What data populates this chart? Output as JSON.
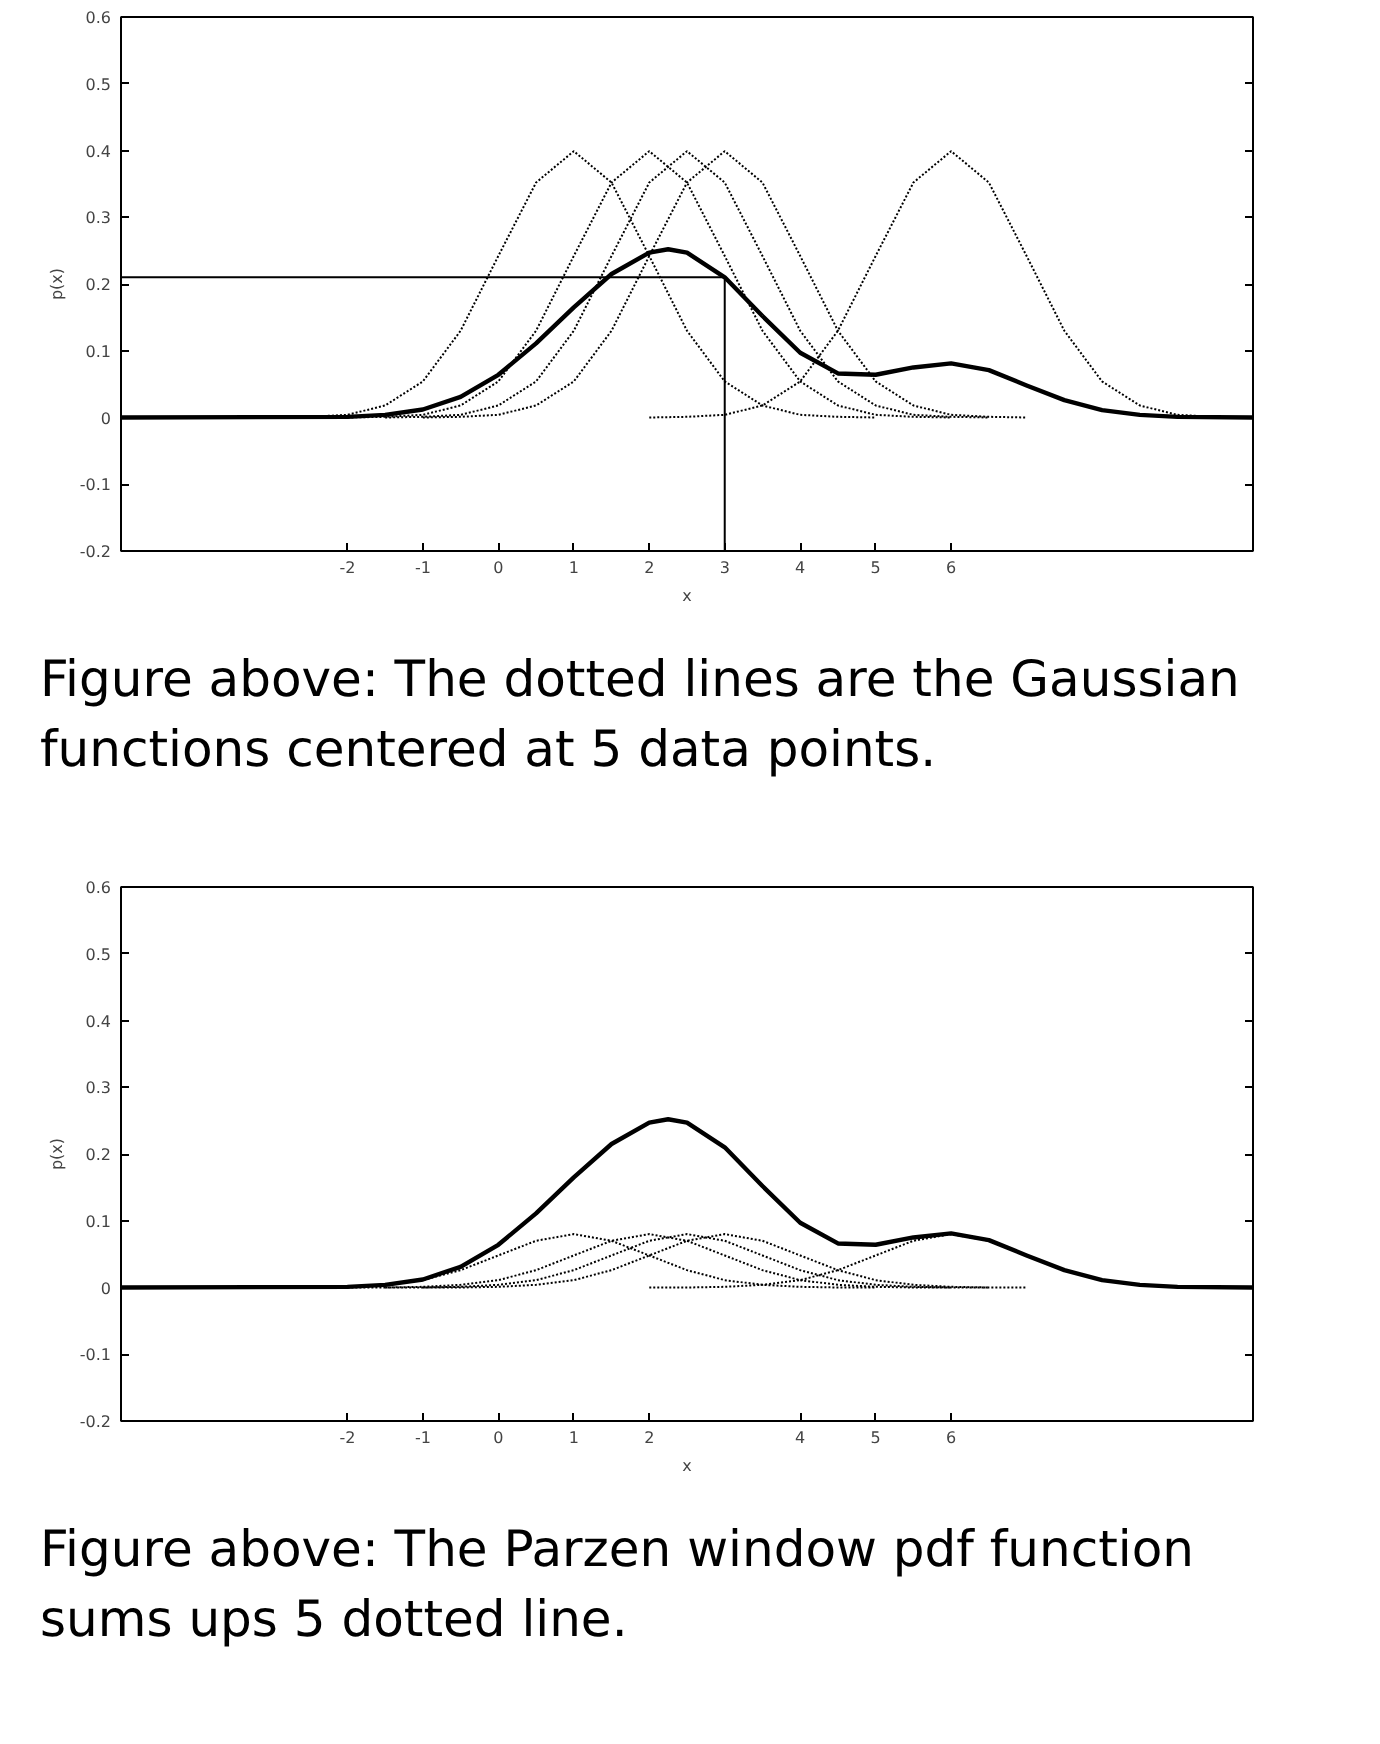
{
  "chart_data": [
    {
      "type": "line",
      "xlabel": "x",
      "ylabel": "p(x)",
      "xlim": [
        -5,
        10
      ],
      "ylim": [
        -0.2,
        0.6
      ],
      "xticks": [
        -2,
        -1,
        0,
        1,
        2,
        3,
        4,
        5,
        6
      ],
      "yticks": [
        -0.2,
        -0.1,
        0,
        0.1,
        0.2,
        0.3,
        0.4,
        0.5,
        0.6
      ],
      "annotations": [
        "Figure above: The dotted lines are the Gaussian functions centered at 5 data points."
      ],
      "series": [
        {
          "color": "#000000",
          "line_style": "solid",
          "x": [
            -5,
            -2,
            -1.5,
            -1,
            -0.5,
            0,
            0.5,
            1,
            1.5,
            2,
            2.25,
            2.5,
            3,
            3.5,
            4,
            4.5,
            5,
            5.5,
            6,
            6.5,
            7,
            7.5,
            8,
            8.5,
            9,
            10
          ],
          "values": [
            0,
            0.001,
            0.004,
            0.012,
            0.031,
            0.064,
            0.111,
            0.165,
            0.215,
            0.247,
            0.252,
            0.247,
            0.21,
            0.152,
            0.097,
            0.066,
            0.064,
            0.075,
            0.081,
            0.071,
            0.048,
            0.026,
            0.011,
            0.004,
            0.001,
            0
          ]
        },
        {
          "color": "#000000",
          "line_style": "dotted",
          "x": [
            -3,
            -2.5,
            -2,
            -1.5,
            -1,
            -0.5,
            0,
            0.5,
            1,
            1.5,
            2,
            2.5,
            3,
            3.5,
            4,
            4.5,
            5
          ],
          "values": [
            0,
            0.001,
            0.004,
            0.018,
            0.054,
            0.13,
            0.242,
            0.352,
            0.399,
            0.352,
            0.242,
            0.13,
            0.054,
            0.018,
            0.004,
            0.001,
            0
          ]
        },
        {
          "color": "#000000",
          "line_style": "dotted",
          "x": [
            -2,
            -1.5,
            -1,
            -0.5,
            0,
            0.5,
            1,
            1.5,
            2,
            2.5,
            3,
            3.5,
            4,
            4.5,
            5,
            5.5,
            6
          ],
          "values": [
            0,
            0.001,
            0.004,
            0.018,
            0.054,
            0.13,
            0.242,
            0.352,
            0.399,
            0.352,
            0.242,
            0.13,
            0.054,
            0.018,
            0.004,
            0.001,
            0
          ]
        },
        {
          "color": "#000000",
          "line_style": "dotted",
          "x": [
            -1.5,
            -1,
            -0.5,
            0,
            0.5,
            1,
            1.5,
            2,
            2.5,
            3,
            3.5,
            4,
            4.5,
            5,
            5.5,
            6,
            6.5
          ],
          "values": [
            0,
            0.001,
            0.004,
            0.018,
            0.054,
            0.13,
            0.242,
            0.352,
            0.399,
            0.352,
            0.242,
            0.13,
            0.054,
            0.018,
            0.004,
            0.001,
            0
          ]
        },
        {
          "color": "#000000",
          "line_style": "dotted",
          "x": [
            -1,
            -0.5,
            0,
            0.5,
            1,
            1.5,
            2,
            2.5,
            3,
            3.5,
            4,
            4.5,
            5,
            5.5,
            6,
            6.5,
            7
          ],
          "values": [
            0,
            0.001,
            0.004,
            0.018,
            0.054,
            0.13,
            0.242,
            0.352,
            0.399,
            0.352,
            0.242,
            0.13,
            0.054,
            0.018,
            0.004,
            0.001,
            0
          ]
        },
        {
          "color": "#000000",
          "line_style": "dotted",
          "x": [
            2,
            2.5,
            3,
            3.5,
            4,
            4.5,
            5,
            5.5,
            6,
            6.5,
            7,
            7.5,
            8,
            8.5,
            9,
            9.5,
            10
          ],
          "values": [
            0,
            0.001,
            0.004,
            0.018,
            0.054,
            0.13,
            0.242,
            0.352,
            0.399,
            0.352,
            0.242,
            0.13,
            0.054,
            0.018,
            0.004,
            0.001,
            0
          ]
        },
        {
          "color": "#000000",
          "line_style": "solid",
          "x": [
            -5,
            3,
            3
          ],
          "values": [
            0.21,
            0.21,
            -0.2
          ]
        }
      ]
    },
    {
      "type": "line",
      "xlabel": "x",
      "ylabel": "p(x)",
      "xlim": [
        -5,
        10
      ],
      "ylim": [
        -0.2,
        0.6
      ],
      "xticks": [
        -2,
        -1,
        0,
        1,
        2,
        4,
        5,
        6
      ],
      "yticks": [
        -0.2,
        -0.1,
        0,
        0.1,
        0.2,
        0.3,
        0.4,
        0.5,
        0.6
      ],
      "annotations": [
        "Figure above: The Parzen window pdf function sums ups 5 dotted line."
      ],
      "series": [
        {
          "color": "#000000",
          "line_style": "solid",
          "x": [
            -5,
            -2,
            -1.5,
            -1,
            -0.5,
            0,
            0.5,
            1,
            1.5,
            2,
            2.25,
            2.5,
            3,
            3.5,
            4,
            4.5,
            5,
            5.5,
            6,
            6.5,
            7,
            7.5,
            8,
            8.5,
            9,
            10
          ],
          "values": [
            0,
            0.001,
            0.004,
            0.012,
            0.031,
            0.064,
            0.111,
            0.165,
            0.215,
            0.247,
            0.252,
            0.247,
            0.21,
            0.152,
            0.097,
            0.066,
            0.064,
            0.075,
            0.081,
            0.071,
            0.048,
            0.026,
            0.011,
            0.004,
            0.001,
            0
          ]
        },
        {
          "color": "#000000",
          "line_style": "dotted",
          "x": [
            -3,
            -2.5,
            -2,
            -1.5,
            -1,
            -0.5,
            0,
            0.5,
            1,
            1.5,
            2,
            2.5,
            3,
            3.5,
            4,
            4.5,
            5
          ],
          "values": [
            0,
            0,
            0.001,
            0.004,
            0.011,
            0.026,
            0.048,
            0.07,
            0.08,
            0.07,
            0.048,
            0.026,
            0.011,
            0.004,
            0.001,
            0,
            0
          ]
        },
        {
          "color": "#000000",
          "line_style": "dotted",
          "x": [
            -2,
            -1.5,
            -1,
            -0.5,
            0,
            0.5,
            1,
            1.5,
            2,
            2.5,
            3,
            3.5,
            4,
            4.5,
            5,
            5.5,
            6
          ],
          "values": [
            0,
            0,
            0.001,
            0.004,
            0.011,
            0.026,
            0.048,
            0.07,
            0.08,
            0.07,
            0.048,
            0.026,
            0.011,
            0.004,
            0.001,
            0,
            0
          ]
        },
        {
          "color": "#000000",
          "line_style": "dotted",
          "x": [
            -1.5,
            -1,
            -0.5,
            0,
            0.5,
            1,
            1.5,
            2,
            2.5,
            3,
            3.5,
            4,
            4.5,
            5,
            5.5,
            6,
            6.5
          ],
          "values": [
            0,
            0,
            0.001,
            0.004,
            0.011,
            0.026,
            0.048,
            0.07,
            0.08,
            0.07,
            0.048,
            0.026,
            0.011,
            0.004,
            0.001,
            0,
            0
          ]
        },
        {
          "color": "#000000",
          "line_style": "dotted",
          "x": [
            -1,
            -0.5,
            0,
            0.5,
            1,
            1.5,
            2,
            2.5,
            3,
            3.5,
            4,
            4.5,
            5,
            5.5,
            6,
            6.5,
            7
          ],
          "values": [
            0,
            0,
            0.001,
            0.004,
            0.011,
            0.026,
            0.048,
            0.07,
            0.08,
            0.07,
            0.048,
            0.026,
            0.011,
            0.004,
            0.001,
            0,
            0
          ]
        },
        {
          "color": "#000000",
          "line_style": "dotted",
          "x": [
            2,
            2.5,
            3,
            3.5,
            4,
            4.5,
            5,
            5.5,
            6,
            6.5,
            7,
            7.5,
            8,
            8.5,
            9,
            9.5,
            10
          ],
          "values": [
            0,
            0,
            0.001,
            0.004,
            0.011,
            0.026,
            0.048,
            0.07,
            0.08,
            0.07,
            0.048,
            0.026,
            0.011,
            0.004,
            0.001,
            0,
            0
          ]
        }
      ]
    }
  ]
}
